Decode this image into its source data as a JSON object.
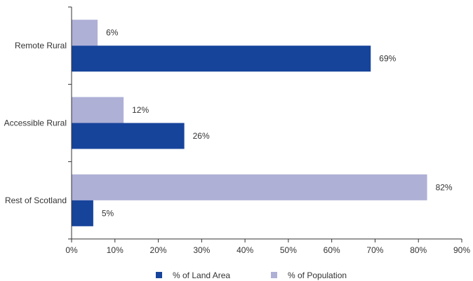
{
  "chart_data": {
    "type": "bar",
    "orientation": "horizontal",
    "categories": [
      "Remote Rural",
      "Accessible Rural",
      "Rest of Scotland"
    ],
    "series": [
      {
        "name": "% of Population",
        "values": [
          6,
          12,
          82
        ],
        "color": "#aeb0d6",
        "labels": [
          "6%",
          "12%",
          "82%"
        ]
      },
      {
        "name": "% of Land Area",
        "values": [
          69,
          26,
          5
        ],
        "color": "#17449b",
        "labels": [
          "69%",
          "26%",
          "5%"
        ]
      }
    ],
    "xlim": [
      0,
      90
    ],
    "x_ticks": [
      0,
      10,
      20,
      30,
      40,
      50,
      60,
      70,
      80,
      90
    ],
    "x_tick_labels": [
      "0%",
      "10%",
      "20%",
      "30%",
      "40%",
      "50%",
      "60%",
      "70%",
      "80%",
      "90%"
    ],
    "legend": {
      "position": "bottom",
      "items": [
        {
          "label": "% of Land Area",
          "color": "#17449b"
        },
        {
          "label": "% of Population",
          "color": "#aeb0d6"
        }
      ]
    },
    "grid": false
  }
}
